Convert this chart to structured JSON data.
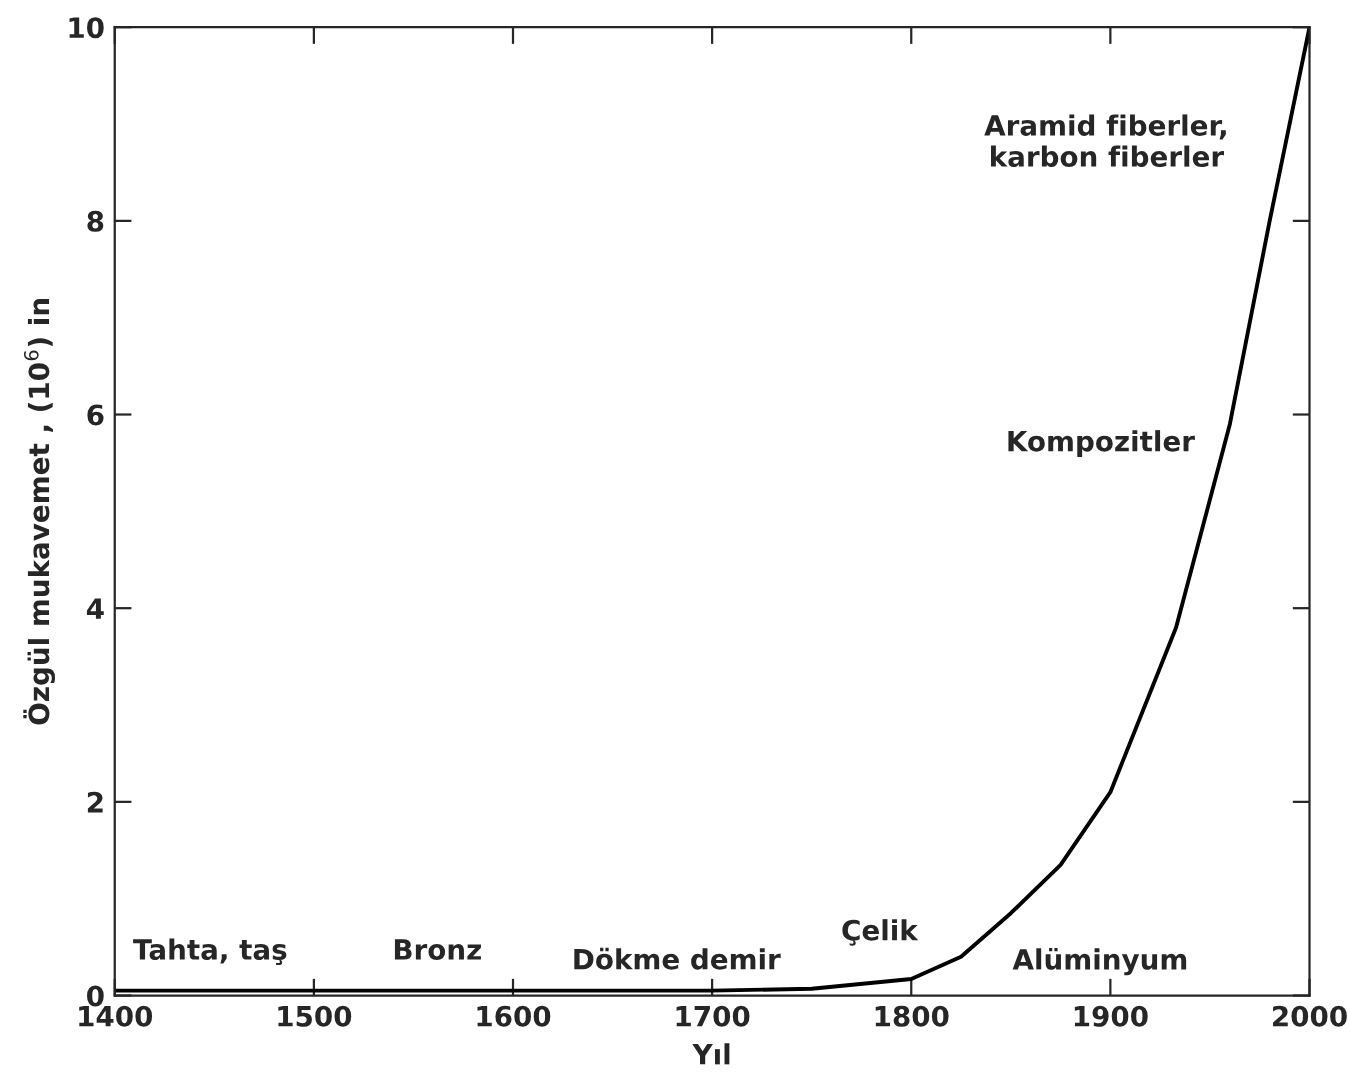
{
  "chart_data": {
    "type": "line",
    "xlabel": "Yıl",
    "ylabel": "Özgül mukavemet , (10$^{6}$) in",
    "x": [
      1400,
      1500,
      1600,
      1700,
      1750,
      1800,
      1825,
      1850,
      1875,
      1900,
      1933,
      1960,
      1980,
      2000
    ],
    "series": [
      {
        "color": "#000000",
        "values": [
          0.05,
          0.05,
          0.05,
          0.05,
          0.07,
          0.17,
          0.4,
          0.85,
          1.35,
          2.1,
          3.8,
          5.9,
          8.0,
          10
        ]
      }
    ],
    "xlim": [
      1400,
      2000
    ],
    "xticks": [
      1400,
      1500,
      1600,
      1700,
      1800,
      1900,
      2000
    ],
    "ylim": [
      0,
      10
    ],
    "yticks": [
      0,
      2,
      4,
      6,
      8,
      10
    ],
    "grid": false,
    "legend": false,
    "marker": "none",
    "line_style": "solid",
    "annotations": [
      "Tahta, taş",
      "Bronz",
      "Dökme demir",
      "Çelik",
      "Alüminyum",
      "Kompozitler",
      "Aramid fiberler,\nkarbon fiberler"
    ]
  }
}
